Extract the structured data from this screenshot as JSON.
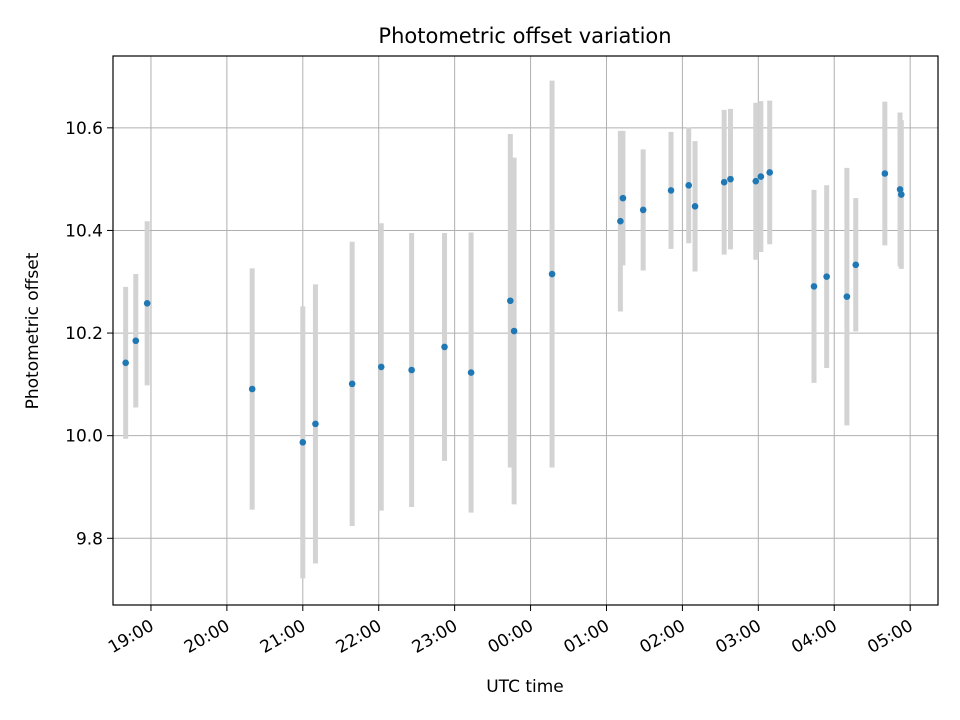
{
  "chart_data": {
    "type": "scatter",
    "title": "Photometric offset variation",
    "xlabel": "UTC time",
    "ylabel": "Photometric offset",
    "x_tick_labels": [
      "19:00",
      "20:00",
      "21:00",
      "22:00",
      "23:00",
      "00:00",
      "01:00",
      "02:00",
      "03:00",
      "04:00",
      "05:00"
    ],
    "y_tick_labels": [
      "9.8",
      "10.0",
      "10.2",
      "10.4",
      "10.6"
    ],
    "y_ticks": [
      9.8,
      10.0,
      10.2,
      10.4,
      10.6
    ],
    "ylim": [
      9.67,
      10.74
    ],
    "xlim": [
      "18:30",
      "05:22"
    ],
    "grid": true,
    "colors": {
      "point": "#1f77b4",
      "errorbar": "#d3d3d3",
      "grid": "#b0b0b0"
    },
    "series": [
      {
        "points": [
          {
            "x": "18:40",
            "y": 10.142,
            "err": 0.148
          },
          {
            "x": "18:48",
            "y": 10.185,
            "err": 0.13
          },
          {
            "x": "18:57",
            "y": 10.258,
            "err": 0.16
          },
          {
            "x": "20:20",
            "y": 10.091,
            "err": 0.235
          },
          {
            "x": "21:00",
            "y": 9.987,
            "err": 0.265
          },
          {
            "x": "21:10",
            "y": 10.023,
            "err": 0.272
          },
          {
            "x": "21:39",
            "y": 10.101,
            "err": 0.277
          },
          {
            "x": "22:02",
            "y": 10.134,
            "err": 0.28
          },
          {
            "x": "22:26",
            "y": 10.128,
            "err": 0.267
          },
          {
            "x": "22:52",
            "y": 10.173,
            "err": 0.222
          },
          {
            "x": "23:13",
            "y": 10.123,
            "err": 0.273
          },
          {
            "x": "23:44",
            "y": 10.263,
            "err": 0.325
          },
          {
            "x": "23:47",
            "y": 10.204,
            "err": 0.338
          },
          {
            "x": "00:17",
            "y": 10.315,
            "err": 0.377
          },
          {
            "x": "01:11",
            "y": 10.418,
            "err": 0.176
          },
          {
            "x": "01:13",
            "y": 10.463,
            "err": 0.131
          },
          {
            "x": "01:29",
            "y": 10.44,
            "err": 0.118
          },
          {
            "x": "01:51",
            "y": 10.478,
            "err": 0.114
          },
          {
            "x": "02:05",
            "y": 10.488,
            "err": 0.113
          },
          {
            "x": "02:10",
            "y": 10.447,
            "err": 0.127
          },
          {
            "x": "02:33",
            "y": 10.494,
            "err": 0.141
          },
          {
            "x": "02:38",
            "y": 10.5,
            "err": 0.137
          },
          {
            "x": "02:58",
            "y": 10.496,
            "err": 0.153
          },
          {
            "x": "03:02",
            "y": 10.505,
            "err": 0.147
          },
          {
            "x": "03:09",
            "y": 10.513,
            "err": 0.14
          },
          {
            "x": "03:44",
            "y": 10.291,
            "err": 0.188
          },
          {
            "x": "03:54",
            "y": 10.31,
            "err": 0.178
          },
          {
            "x": "04:10",
            "y": 10.271,
            "err": 0.251
          },
          {
            "x": "04:17",
            "y": 10.333,
            "err": 0.13
          },
          {
            "x": "04:40",
            "y": 10.511,
            "err": 0.14
          },
          {
            "x": "04:52",
            "y": 10.48,
            "err": 0.15
          },
          {
            "x": "04:53",
            "y": 10.47,
            "err": 0.145
          }
        ]
      }
    ]
  }
}
